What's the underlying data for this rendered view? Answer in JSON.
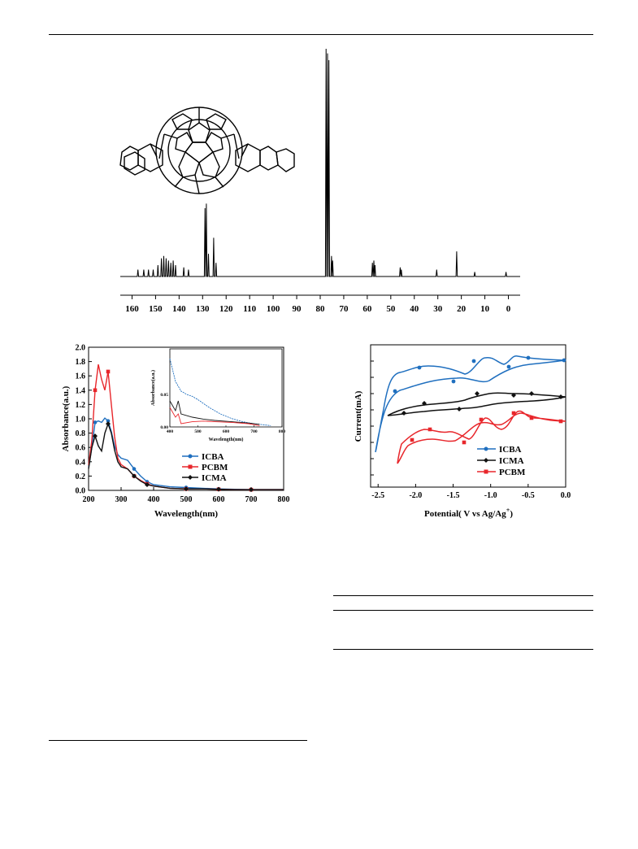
{
  "page": {
    "colors": {
      "ink": "#000000",
      "icba": "#1f6fbf",
      "pcbm": "#e8262b",
      "icma": "#111111"
    }
  },
  "nmr": {
    "x_ticks": [
      "160",
      "150",
      "140",
      "130",
      "120",
      "110",
      "100",
      "90",
      "80",
      "70",
      "60",
      "50",
      "40",
      "30",
      "20",
      "10",
      "0"
    ],
    "molecule_icon": "fullerene-bis-indene-adduct-structure"
  },
  "uv": {
    "ylabel": "Absorbance(a.u.)",
    "xlabel": "Wavelength(nm)",
    "x_ticks": [
      "200",
      "300",
      "400",
      "500",
      "600",
      "700",
      "800"
    ],
    "y_ticks": [
      "0.0",
      "0.2",
      "0.4",
      "0.6",
      "0.8",
      "1.0",
      "1.2",
      "1.4",
      "1.6",
      "1.8",
      "2.0"
    ],
    "legend": [
      "ICBA",
      "PCBM",
      "ICMA"
    ],
    "inset": {
      "ylabel": "Absorbance(a.u.)",
      "xlabel": "Wavelength(nm)",
      "x_ticks": [
        "400",
        "500",
        "600",
        "700",
        "800"
      ],
      "y_ticks": [
        "0.00",
        "0.05"
      ]
    }
  },
  "cv": {
    "ylabel": "Current(mA)",
    "xlabel": "Potential( V vs Ag/Ag",
    "xlabel_sup": "+",
    "xlabel_end": ")",
    "x_ticks": [
      "-2.5",
      "-2.0",
      "-1.5",
      "-1.0",
      "-0.5",
      "0.0"
    ],
    "legend": [
      "ICBA",
      "ICMA",
      "PCBM"
    ]
  },
  "chart_data": [
    {
      "type": "line",
      "title": "",
      "xlabel": "",
      "ylabel": "",
      "xlim": [
        165,
        -5
      ],
      "x_ticks": [
        160,
        150,
        140,
        130,
        120,
        110,
        100,
        90,
        80,
        70,
        60,
        50,
        40,
        30,
        20,
        10,
        0
      ],
      "series": [
        {
          "peaks": [
            {
              "x": 157.5,
              "y": 0.03
            },
            {
              "x": 155,
              "y": 0.03
            },
            {
              "x": 153,
              "y": 0.03
            },
            {
              "x": 151,
              "y": 0.03
            },
            {
              "x": 149,
              "y": 0.05
            },
            {
              "x": 147.5,
              "y": 0.08
            },
            {
              "x": 146.5,
              "y": 0.09
            },
            {
              "x": 145.5,
              "y": 0.08
            },
            {
              "x": 144.5,
              "y": 0.07
            },
            {
              "x": 143.5,
              "y": 0.06
            },
            {
              "x": 142.5,
              "y": 0.07
            },
            {
              "x": 141.5,
              "y": 0.05
            },
            {
              "x": 138,
              "y": 0.04
            },
            {
              "x": 136,
              "y": 0.03
            },
            {
              "x": 129,
              "y": 0.3
            },
            {
              "x": 128.4,
              "y": 0.32
            },
            {
              "x": 127.5,
              "y": 0.1
            },
            {
              "x": 125.3,
              "y": 0.17
            },
            {
              "x": 124.3,
              "y": 0.06
            },
            {
              "x": 77.5,
              "y": 1.0
            },
            {
              "x": 76.9,
              "y": 0.98
            },
            {
              "x": 76.3,
              "y": 0.95
            },
            {
              "x": 75.2,
              "y": 0.09
            },
            {
              "x": 74.7,
              "y": 0.07
            },
            {
              "x": 57.8,
              "y": 0.06
            },
            {
              "x": 57.2,
              "y": 0.07
            },
            {
              "x": 56.7,
              "y": 0.05
            },
            {
              "x": 46.0,
              "y": 0.04
            },
            {
              "x": 45.5,
              "y": 0.03
            },
            {
              "x": 30.5,
              "y": 0.03
            },
            {
              "x": 22.0,
              "y": 0.11
            },
            {
              "x": 14.3,
              "y": 0.02
            },
            {
              "x": 1.0,
              "y": 0.02
            }
          ]
        }
      ]
    },
    {
      "type": "line",
      "title": "",
      "xlabel": "Wavelength(nm)",
      "ylabel": "Absorbance(a.u.)",
      "xlim": [
        200,
        800
      ],
      "ylim": [
        0,
        2.0
      ],
      "series": [
        {
          "name": "ICBA",
          "x": [
            200,
            210,
            220,
            230,
            240,
            250,
            260,
            270,
            280,
            290,
            300,
            320,
            340,
            360,
            380,
            400,
            450,
            500,
            550,
            600,
            650,
            700,
            750,
            800
          ],
          "values": [
            0.32,
            0.6,
            0.95,
            0.97,
            0.95,
            1.01,
            0.97,
            0.82,
            0.62,
            0.5,
            0.45,
            0.42,
            0.3,
            0.2,
            0.12,
            0.08,
            0.05,
            0.04,
            0.03,
            0.02,
            0.015,
            0.01,
            0.01,
            0.01
          ]
        },
        {
          "name": "PCBM",
          "x": [
            200,
            210,
            220,
            230,
            240,
            250,
            260,
            270,
            280,
            290,
            300,
            320,
            340,
            360,
            380,
            400,
            450,
            500,
            550,
            600,
            650,
            700,
            750,
            800
          ],
          "values": [
            0.35,
            0.7,
            1.4,
            1.76,
            1.55,
            1.4,
            1.66,
            1.2,
            0.75,
            0.45,
            0.36,
            0.3,
            0.2,
            0.14,
            0.09,
            0.06,
            0.03,
            0.02,
            0.02,
            0.015,
            0.01,
            0.01,
            0.01,
            0.01
          ]
        },
        {
          "name": "ICMA",
          "x": [
            200,
            210,
            220,
            230,
            240,
            250,
            260,
            270,
            280,
            290,
            300,
            320,
            340,
            360,
            380,
            400,
            450,
            500,
            550,
            600,
            650,
            700,
            750,
            800
          ],
          "values": [
            0.3,
            0.6,
            0.76,
            0.62,
            0.55,
            0.8,
            0.93,
            0.8,
            0.56,
            0.4,
            0.33,
            0.3,
            0.2,
            0.13,
            0.08,
            0.06,
            0.03,
            0.02,
            0.02,
            0.015,
            0.01,
            0.01,
            0.01,
            0.01
          ]
        }
      ]
    },
    {
      "type": "line",
      "title": "",
      "xlabel": "Potential( V vs Ag/Ag+)",
      "ylabel": "Current(mA)",
      "xlim": [
        -2.6,
        0.0
      ],
      "series": [
        {
          "name": "ICBA"
        },
        {
          "name": "ICMA"
        },
        {
          "name": "PCBM"
        }
      ]
    }
  ]
}
